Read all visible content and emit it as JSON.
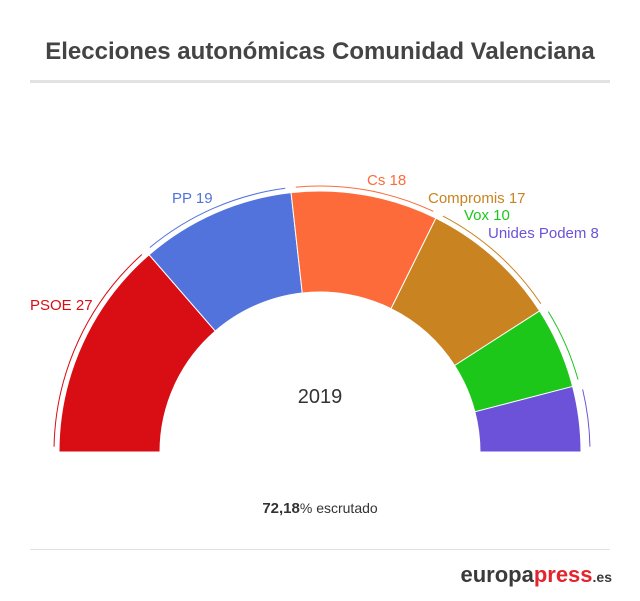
{
  "chart_data": {
    "type": "pie",
    "subtype": "half-donut",
    "title": "Elecciones autonómicas Comunidad Valenciana",
    "center_label": "2019",
    "categories": [
      "PSOE",
      "PP",
      "Cs",
      "Compromis",
      "Vox",
      "Unides Podem"
    ],
    "values": [
      27,
      19,
      18,
      17,
      10,
      8
    ],
    "colors": [
      "#d90d14",
      "#5273dc",
      "#fd6b3a",
      "#c98320",
      "#1dc71a",
      "#6c52d8"
    ],
    "labels": [
      "PSOE 27",
      "PP 19",
      "Cs 18",
      "Compromis 17",
      "Vox 10",
      "Unides Podem 8"
    ]
  },
  "footer": {
    "percent": "72,18",
    "percent_sign": "%",
    "scrutiny_text": " escrutado"
  },
  "logo": {
    "part1": "europa",
    "part2": "press",
    "part3": ".es"
  }
}
